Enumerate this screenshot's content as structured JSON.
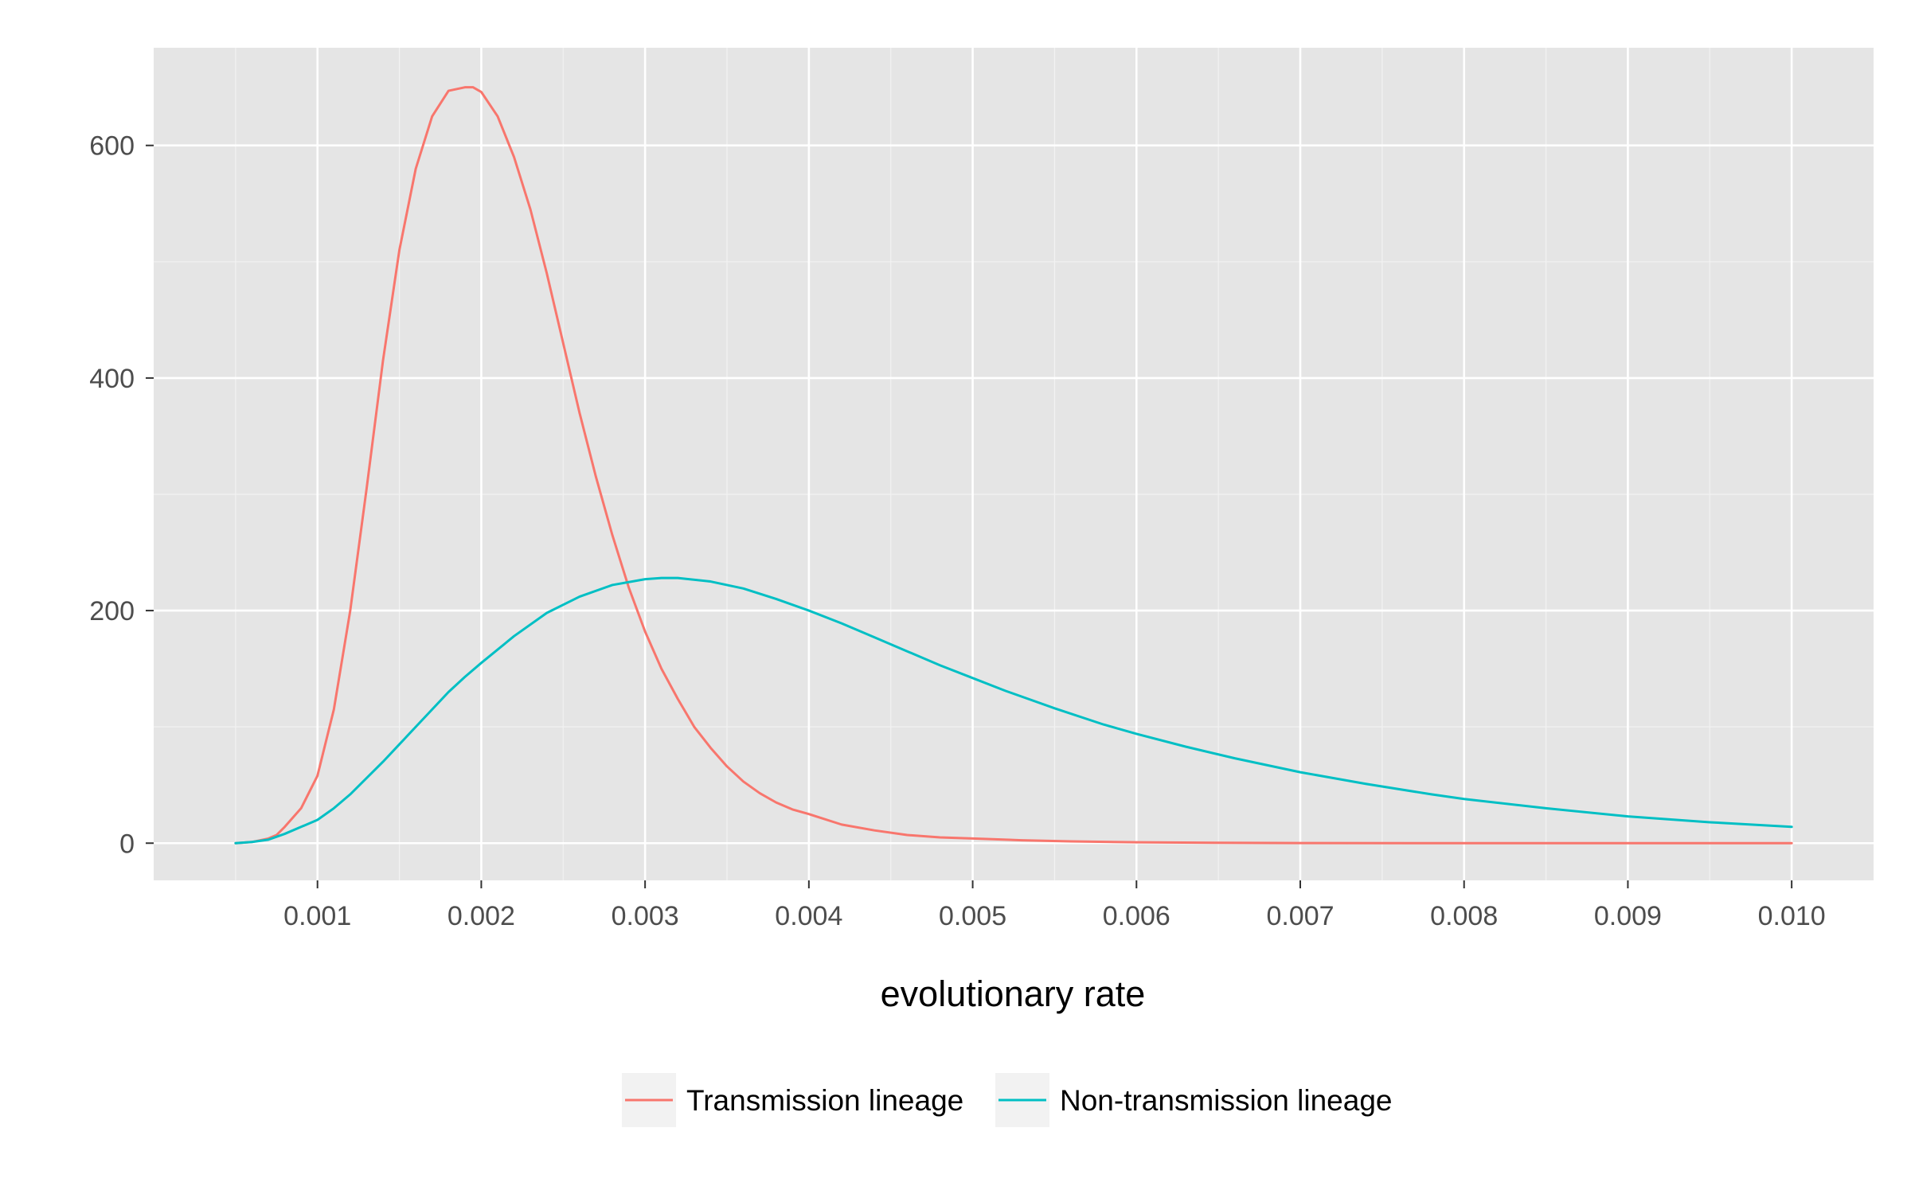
{
  "chart_data": {
    "type": "line",
    "title": "",
    "xlabel": "evolutionary rate",
    "ylabel": "",
    "xlim": [
      0.0,
      0.0105
    ],
    "ylim": [
      -32,
      684
    ],
    "x_ticks": [
      "0.001",
      "0.002",
      "0.003",
      "0.004",
      "0.005",
      "0.006",
      "0.007",
      "0.008",
      "0.009",
      "0.010"
    ],
    "x_tick_values": [
      0.001,
      0.002,
      0.003,
      0.004,
      0.005,
      0.006,
      0.007,
      0.008,
      0.009,
      0.01
    ],
    "y_ticks": [
      "0",
      "200",
      "400",
      "600"
    ],
    "y_tick_values": [
      0,
      200,
      400,
      600
    ],
    "grid": true,
    "legend_position": "bottom",
    "series": [
      {
        "name": "Transmission lineage",
        "color": "#F8766D",
        "x": [
          0.0005,
          0.0006,
          0.0007,
          0.00075,
          0.0008,
          0.0009,
          0.001,
          0.0011,
          0.0012,
          0.0013,
          0.0014,
          0.0015,
          0.0016,
          0.0017,
          0.0018,
          0.0019,
          0.00195,
          0.002,
          0.0021,
          0.0022,
          0.0023,
          0.0024,
          0.0025,
          0.0026,
          0.0027,
          0.0028,
          0.0029,
          0.003,
          0.0031,
          0.0032,
          0.0033,
          0.0034,
          0.0035,
          0.0036,
          0.0037,
          0.0038,
          0.0039,
          0.004,
          0.0042,
          0.0044,
          0.0046,
          0.0048,
          0.005,
          0.0053,
          0.0056,
          0.006,
          0.0065,
          0.007,
          0.008,
          0.009,
          0.01
        ],
        "y": [
          0,
          1,
          4,
          7,
          14,
          30,
          58,
          115,
          200,
          305,
          415,
          510,
          580,
          625,
          647,
          650,
          650,
          646,
          625,
          590,
          545,
          490,
          430,
          370,
          315,
          265,
          220,
          182,
          150,
          124,
          100,
          82,
          66,
          53,
          43,
          35,
          29,
          25,
          16,
          11,
          7,
          5,
          4,
          2.5,
          1.5,
          0.8,
          0.3,
          0.1,
          0,
          0,
          0
        ]
      },
      {
        "name": "Non-transmission lineage",
        "color": "#00BFC4",
        "x": [
          0.0005,
          0.0006,
          0.0007,
          0.0008,
          0.0009,
          0.001,
          0.0011,
          0.0012,
          0.0013,
          0.0014,
          0.0015,
          0.0016,
          0.0017,
          0.0018,
          0.0019,
          0.002,
          0.0022,
          0.0024,
          0.0026,
          0.0028,
          0.003,
          0.0031,
          0.0032,
          0.0034,
          0.0036,
          0.0038,
          0.004,
          0.0042,
          0.0044,
          0.0046,
          0.0048,
          0.005,
          0.0052,
          0.0055,
          0.0058,
          0.006,
          0.0063,
          0.0066,
          0.007,
          0.0074,
          0.0078,
          0.008,
          0.0085,
          0.009,
          0.0095,
          0.01
        ],
        "y": [
          0,
          1,
          3,
          8,
          14,
          20,
          30,
          42,
          56,
          70,
          85,
          100,
          115,
          130,
          143,
          155,
          178,
          198,
          212,
          222,
          227,
          228,
          228,
          225,
          219,
          210,
          200,
          189,
          177,
          165,
          153,
          142,
          131,
          116,
          102,
          94,
          83,
          73,
          61,
          51,
          42,
          38,
          30,
          23,
          18,
          14
        ]
      }
    ]
  }
}
